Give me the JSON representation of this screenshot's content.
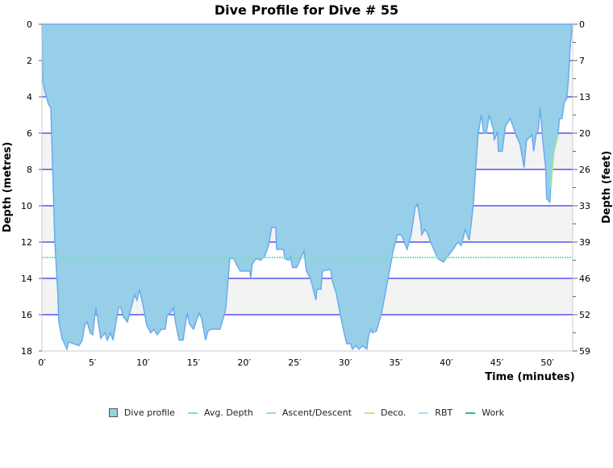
{
  "chart_data": {
    "type": "area",
    "title": "Dive Profile for Dive # 55",
    "xlabel": "Time (minutes)",
    "ylabel": "Depth (metres)",
    "y2label": "Depth (feet)",
    "xlim": [
      0,
      52.5
    ],
    "ylim": [
      0,
      18
    ],
    "x_ticks": [
      "0′",
      "5′",
      "10′",
      "15′",
      "20′",
      "25′",
      "30′",
      "35′",
      "40′",
      "45′",
      "50′"
    ],
    "x_tick_values": [
      0,
      5,
      10,
      15,
      20,
      25,
      30,
      35,
      40,
      45,
      50
    ],
    "y_ticks": [
      "0",
      "2",
      "4",
      "6",
      "8",
      "10",
      "12",
      "14",
      "16",
      "18"
    ],
    "y_tick_values": [
      0,
      2,
      4,
      6,
      8,
      10,
      12,
      14,
      16,
      18
    ],
    "y2_ticks": [
      "0",
      "7",
      "13",
      "20",
      "26",
      "33",
      "39",
      "46",
      "52",
      "59"
    ],
    "avg_depth": 12.85,
    "colors": {
      "profile_fill": "#97cfe8",
      "profile_line": "#6aaaf0",
      "avg": "#7de0b8",
      "ascent": "#98e898",
      "deco": "#d8e070",
      "rbt": "#a8dff5",
      "work": "#30b890",
      "grid": "#0000ee",
      "band": "#f3f3f3"
    },
    "ascent_segment": [
      [
        50.32,
        9.0
      ],
      [
        50.64,
        7.0
      ],
      [
        51.04,
        6.1
      ]
    ],
    "profile": [
      [
        0,
        0
      ],
      [
        0.08,
        3.1
      ],
      [
        0.24,
        3.6
      ],
      [
        0.64,
        4.4
      ],
      [
        0.88,
        4.6
      ],
      [
        1.04,
        7.6
      ],
      [
        1.28,
        12.0
      ],
      [
        1.59,
        15.0
      ],
      [
        1.67,
        16.4
      ],
      [
        1.99,
        17.3
      ],
      [
        2.47,
        17.9
      ],
      [
        2.63,
        17.5
      ],
      [
        3.67,
        17.7
      ],
      [
        3.99,
        17.4
      ],
      [
        4.23,
        16.6
      ],
      [
        4.47,
        16.4
      ],
      [
        4.78,
        17.0
      ],
      [
        5.02,
        17.1
      ],
      [
        5.34,
        15.6
      ],
      [
        5.82,
        17.3
      ],
      [
        6.22,
        17.0
      ],
      [
        6.46,
        17.4
      ],
      [
        6.78,
        17.0
      ],
      [
        7.02,
        17.4
      ],
      [
        7.58,
        15.6
      ],
      [
        7.81,
        15.6
      ],
      [
        8.05,
        16.1
      ],
      [
        8.45,
        16.4
      ],
      [
        9.17,
        14.9
      ],
      [
        9.41,
        15.2
      ],
      [
        9.65,
        14.6
      ],
      [
        9.97,
        15.4
      ],
      [
        10.37,
        16.6
      ],
      [
        10.77,
        17.0
      ],
      [
        11.08,
        16.8
      ],
      [
        11.4,
        17.1
      ],
      [
        11.8,
        16.8
      ],
      [
        12.2,
        16.8
      ],
      [
        12.36,
        16.1
      ],
      [
        12.84,
        15.8
      ],
      [
        13.0,
        15.6
      ],
      [
        13.24,
        16.5
      ],
      [
        13.56,
        17.4
      ],
      [
        13.96,
        17.4
      ],
      [
        14.35,
        15.9
      ],
      [
        14.59,
        16.5
      ],
      [
        14.99,
        16.8
      ],
      [
        15.55,
        15.9
      ],
      [
        15.79,
        16.2
      ],
      [
        16.19,
        17.4
      ],
      [
        16.43,
        16.9
      ],
      [
        16.75,
        16.8
      ],
      [
        17.62,
        16.8
      ],
      [
        18.18,
        15.7
      ],
      [
        18.58,
        12.9
      ],
      [
        18.98,
        12.9
      ],
      [
        19.22,
        13.2
      ],
      [
        19.62,
        13.6
      ],
      [
        20.57,
        13.6
      ],
      [
        20.65,
        14.0
      ],
      [
        20.81,
        13.2
      ],
      [
        21.21,
        12.9
      ],
      [
        21.61,
        13.0
      ],
      [
        22.01,
        12.8
      ],
      [
        22.41,
        12.2
      ],
      [
        22.73,
        11.2
      ],
      [
        23.13,
        11.2
      ],
      [
        23.21,
        12.4
      ],
      [
        23.92,
        12.4
      ],
      [
        24.0,
        12.9
      ],
      [
        24.4,
        13.0
      ],
      [
        24.56,
        12.8
      ],
      [
        24.8,
        13.4
      ],
      [
        25.2,
        13.4
      ],
      [
        25.92,
        12.5
      ],
      [
        26.16,
        13.6
      ],
      [
        26.56,
        14.0
      ],
      [
        27.11,
        15.2
      ],
      [
        27.19,
        14.6
      ],
      [
        27.59,
        14.6
      ],
      [
        27.75,
        13.6
      ],
      [
        28.55,
        13.5
      ],
      [
        28.71,
        14.1
      ],
      [
        29.11,
        14.8
      ],
      [
        29.51,
        16.0
      ],
      [
        29.9,
        17.0
      ],
      [
        30.14,
        17.6
      ],
      [
        30.54,
        17.6
      ],
      [
        30.7,
        17.9
      ],
      [
        31.1,
        17.7
      ],
      [
        31.34,
        17.9
      ],
      [
        31.74,
        17.7
      ],
      [
        32.14,
        17.9
      ],
      [
        32.3,
        17.2
      ],
      [
        32.54,
        16.8
      ],
      [
        32.7,
        17.0
      ],
      [
        33.09,
        16.9
      ],
      [
        33.57,
        16.0
      ],
      [
        33.97,
        14.8
      ],
      [
        34.37,
        13.6
      ],
      [
        34.77,
        12.4
      ],
      [
        35.17,
        11.6
      ],
      [
        35.57,
        11.6
      ],
      [
        36.12,
        12.4
      ],
      [
        36.52,
        11.6
      ],
      [
        36.92,
        10.1
      ],
      [
        37.16,
        9.9
      ],
      [
        37.48,
        11.0
      ],
      [
        37.56,
        11.6
      ],
      [
        37.88,
        11.3
      ],
      [
        38.12,
        11.5
      ],
      [
        38.52,
        12.1
      ],
      [
        38.76,
        12.4
      ],
      [
        39.15,
        12.9
      ],
      [
        39.71,
        13.1
      ],
      [
        40.11,
        12.8
      ],
      [
        40.67,
        12.4
      ],
      [
        41.15,
        12.0
      ],
      [
        41.47,
        12.2
      ],
      [
        41.87,
        11.3
      ],
      [
        42.26,
        11.9
      ],
      [
        42.5,
        10.8
      ],
      [
        42.66,
        10.0
      ],
      [
        42.9,
        8.0
      ],
      [
        43.14,
        6.1
      ],
      [
        43.46,
        5.0
      ],
      [
        43.7,
        6.0
      ],
      [
        43.94,
        6.0
      ],
      [
        44.26,
        5.0
      ],
      [
        44.66,
        5.8
      ],
      [
        44.74,
        6.4
      ],
      [
        45.06,
        5.9
      ],
      [
        45.14,
        7.0
      ],
      [
        45.53,
        7.0
      ],
      [
        45.85,
        5.6
      ],
      [
        46.33,
        5.2
      ],
      [
        46.89,
        6.1
      ],
      [
        47.29,
        6.6
      ],
      [
        47.69,
        7.9
      ],
      [
        47.93,
        6.4
      ],
      [
        48.48,
        6.1
      ],
      [
        48.64,
        7.0
      ],
      [
        48.88,
        6.1
      ],
      [
        49.12,
        5.8
      ],
      [
        49.28,
        4.6
      ],
      [
        49.52,
        6.3
      ],
      [
        49.84,
        8.0
      ],
      [
        49.92,
        9.6
      ],
      [
        50.24,
        9.8
      ],
      [
        50.32,
        9.0
      ],
      [
        50.64,
        7.0
      ],
      [
        51.04,
        6.1
      ],
      [
        51.2,
        5.2
      ],
      [
        51.44,
        5.2
      ],
      [
        51.67,
        4.3
      ],
      [
        51.91,
        4.1
      ],
      [
        52.07,
        3.1
      ],
      [
        52.23,
        1.5
      ],
      [
        52.47,
        0
      ]
    ],
    "legend": [
      "Dive profile",
      "Avg. Depth",
      "Ascent/Descent",
      "Deco.",
      "RBT",
      "Work"
    ],
    "legend_position": "bottom"
  }
}
